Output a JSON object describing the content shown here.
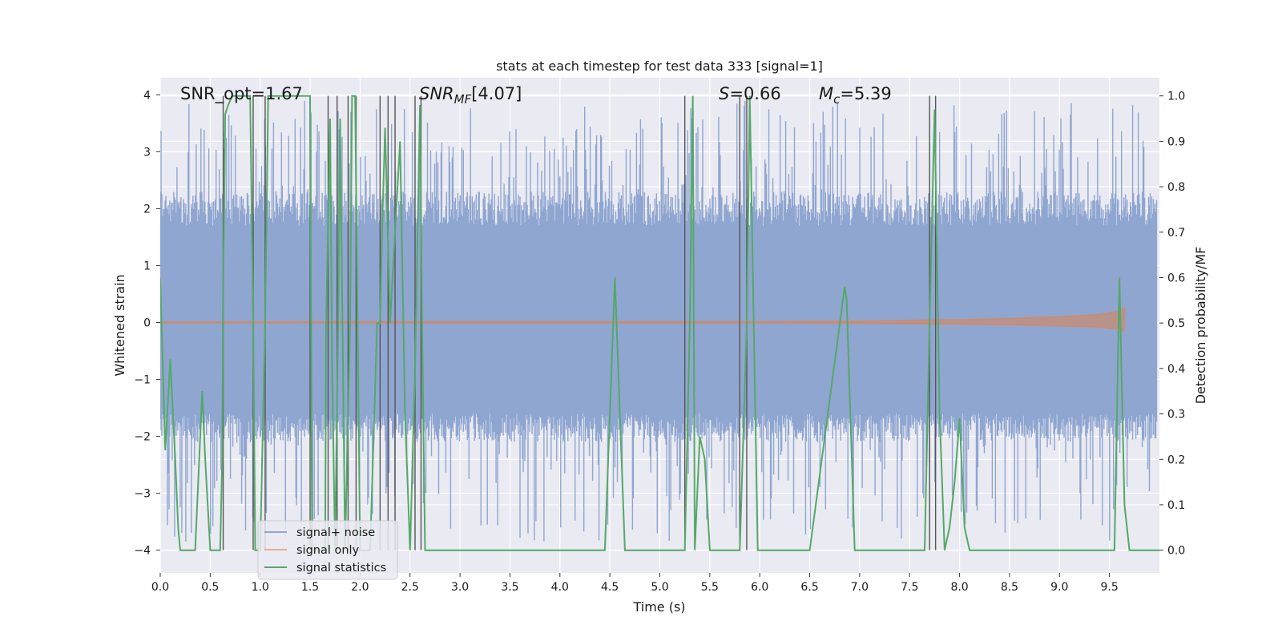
{
  "chart_data": {
    "type": "line",
    "title": "stats at each timestep for test data 333 [signal=1]",
    "xlabel": "Time (s)",
    "ylabel_left": "Whitened strain",
    "ylabel_right": "Detection probability/MF",
    "xlim": [
      0.0,
      10.0
    ],
    "ylim_left": [
      -4.4,
      4.3
    ],
    "ylim_right": [
      -0.05,
      1.04
    ],
    "x_ticks": [
      "0.0",
      "0.5",
      "1.0",
      "1.5",
      "2.0",
      "2.5",
      "3.0",
      "3.5",
      "4.0",
      "4.5",
      "5.0",
      "5.5",
      "6.0",
      "6.5",
      "7.0",
      "7.5",
      "8.0",
      "8.5",
      "9.0",
      "9.5"
    ],
    "y_left_ticks": [
      "4",
      "3",
      "2",
      "1",
      "0",
      "−1",
      "−2",
      "−3",
      "−4"
    ],
    "y_right_ticks": [
      "1.0",
      "0.9",
      "0.8",
      "0.7",
      "0.6",
      "0.5",
      "0.4",
      "0.3",
      "0.2",
      "0.1",
      "0.0"
    ],
    "grid": true,
    "legend_position": "lower-left",
    "annotations": {
      "snr_opt": "SNR_opt=1.67",
      "snr_mf": "[4.07]",
      "s": "=0.66",
      "mc": "=5.39"
    },
    "noise_band": {
      "name": "signal+ noise",
      "color": "#8fa6d1",
      "typical_range": [
        -2.1,
        2.3
      ],
      "extreme_range": [
        -3.9,
        3.9
      ]
    },
    "signal_only": {
      "name": "signal only",
      "color": "#dd8452",
      "envelope": {
        "x": [
          0.0,
          6.0,
          7.0,
          8.0,
          8.5,
          9.0,
          9.4,
          9.6,
          9.65
        ],
        "amp": [
          0.01,
          0.012,
          0.025,
          0.05,
          0.07,
          0.1,
          0.14,
          0.2,
          0.25
        ]
      }
    },
    "signal_statistics": {
      "name": "signal statistics",
      "color": "#55a868",
      "x": [
        0.0,
        0.05,
        0.1,
        0.15,
        0.18,
        0.2,
        0.25,
        0.35,
        0.42,
        0.45,
        0.5,
        0.55,
        0.6,
        0.62,
        0.63,
        0.65,
        0.68,
        0.72,
        0.74,
        0.9,
        0.93,
        0.95,
        1.0,
        1.05,
        1.08,
        1.1,
        1.5,
        1.52,
        1.65,
        1.66,
        1.7,
        1.72,
        1.75,
        1.78,
        1.8,
        1.85,
        1.9,
        1.92,
        1.95,
        2.0,
        2.03,
        2.1,
        2.15,
        2.17,
        2.2,
        2.22,
        2.25,
        2.3,
        2.35,
        2.4,
        2.45,
        2.5,
        2.55,
        2.6,
        2.62,
        2.65,
        2.7,
        4.35,
        4.45,
        4.55,
        4.65,
        5.25,
        5.3,
        5.33,
        5.35,
        5.4,
        5.45,
        5.5,
        5.55,
        5.8,
        5.87,
        5.9,
        5.98,
        6.5,
        6.85,
        6.87,
        6.95,
        7.65,
        7.7,
        7.75,
        7.8,
        7.85,
        7.9,
        7.95,
        8.0,
        8.05,
        8.1,
        9.55,
        9.6,
        9.65,
        9.7,
        10.0
      ],
      "y": [
        0.6,
        0.22,
        0.42,
        0.2,
        0.05,
        0.0,
        0.0,
        0.0,
        0.35,
        0.2,
        0.0,
        0.0,
        0.0,
        0.2,
        0.6,
        0.96,
        0.98,
        1.0,
        1.0,
        1.0,
        0.5,
        0.0,
        0.0,
        0.5,
        1.0,
        1.0,
        1.0,
        0.0,
        0.0,
        0.5,
        0.95,
        0.4,
        0.0,
        0.5,
        0.95,
        0.0,
        0.5,
        1.0,
        1.0,
        0.0,
        0.0,
        0.0,
        0.35,
        0.5,
        0.5,
        0.7,
        0.93,
        0.5,
        0.7,
        0.9,
        0.3,
        0.0,
        0.4,
        0.98,
        0.5,
        0.0,
        0.0,
        0.0,
        0.0,
        0.6,
        0.0,
        0.0,
        0.5,
        1.0,
        0.0,
        0.25,
        0.2,
        0.0,
        0.0,
        0.0,
        0.5,
        1.0,
        0.0,
        0.0,
        0.58,
        0.55,
        0.0,
        0.0,
        0.5,
        0.97,
        0.3,
        0.0,
        0.05,
        0.15,
        0.29,
        0.05,
        0.0,
        0.0,
        0.6,
        0.1,
        0.0,
        0.0
      ]
    },
    "vertical_markers": [
      0.63,
      0.93,
      1.05,
      1.5,
      1.68,
      1.77,
      1.88,
      1.96,
      2.2,
      2.28,
      2.35,
      2.55,
      2.61,
      5.25,
      5.8,
      5.87,
      7.7,
      7.76
    ]
  }
}
